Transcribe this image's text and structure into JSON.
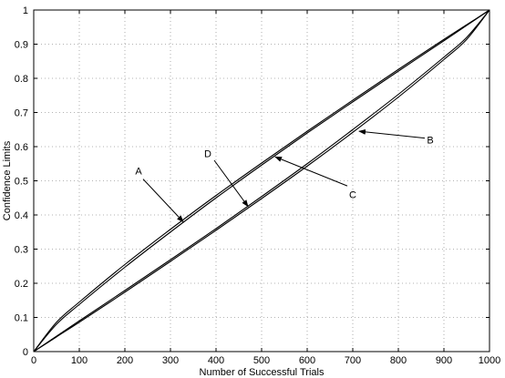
{
  "chart_data": {
    "type": "line",
    "title": "",
    "xlabel": "Number of Successful Trials",
    "ylabel": "Confidence Limits",
    "xlim": [
      0,
      1000
    ],
    "ylim": [
      0,
      1
    ],
    "grid": true,
    "x_ticks": [
      0,
      100,
      200,
      300,
      400,
      500,
      600,
      700,
      800,
      900,
      1000
    ],
    "x_tick_labels": [
      "0",
      "100",
      "200",
      "300",
      "400",
      "500",
      "600",
      "700",
      "800",
      "900",
      "1000"
    ],
    "y_ticks": [
      0,
      0.1,
      0.2,
      0.3,
      0.4,
      0.5,
      0.6,
      0.7,
      0.8,
      0.9,
      1
    ],
    "y_tick_labels": [
      "0",
      "0.1",
      "0.2",
      "0.3",
      "0.4",
      "0.5",
      "0.6",
      "0.7",
      "0.8",
      "0.9",
      "1"
    ],
    "x": [
      0,
      50,
      100,
      200,
      300,
      400,
      500,
      600,
      700,
      800,
      900,
      950,
      1000
    ],
    "series": [
      {
        "values": [
          0.0,
          0.086,
          0.145,
          0.255,
          0.358,
          0.457,
          0.552,
          0.645,
          0.736,
          0.826,
          0.914,
          0.957,
          1.0
        ]
      },
      {
        "values": [
          0.0,
          0.08,
          0.138,
          0.247,
          0.35,
          0.45,
          0.546,
          0.64,
          0.731,
          0.821,
          0.91,
          0.955,
          1.0
        ]
      },
      {
        "values": [
          0.0,
          0.045,
          0.09,
          0.179,
          0.269,
          0.36,
          0.454,
          0.55,
          0.65,
          0.753,
          0.862,
          0.92,
          1.0
        ]
      },
      {
        "values": [
          0.0,
          0.043,
          0.086,
          0.174,
          0.264,
          0.355,
          0.448,
          0.543,
          0.642,
          0.745,
          0.855,
          0.914,
          1.0
        ]
      }
    ],
    "annotations": [
      {
        "label": "A",
        "text_at": [
          230,
          0.53
        ],
        "arrow_from": [
          240,
          0.505
        ],
        "arrow_to": [
          328,
          0.38
        ]
      },
      {
        "label": "B",
        "text_at": [
          870,
          0.62
        ],
        "arrow_from": [
          858,
          0.625
        ],
        "arrow_to": [
          714,
          0.645
        ]
      },
      {
        "label": "C",
        "text_at": [
          700,
          0.46
        ],
        "arrow_from": [
          688,
          0.485
        ],
        "arrow_to": [
          530,
          0.57
        ]
      },
      {
        "label": "D",
        "text_at": [
          382,
          0.58
        ],
        "arrow_from": [
          396,
          0.56
        ],
        "arrow_to": [
          470,
          0.425
        ]
      }
    ]
  }
}
